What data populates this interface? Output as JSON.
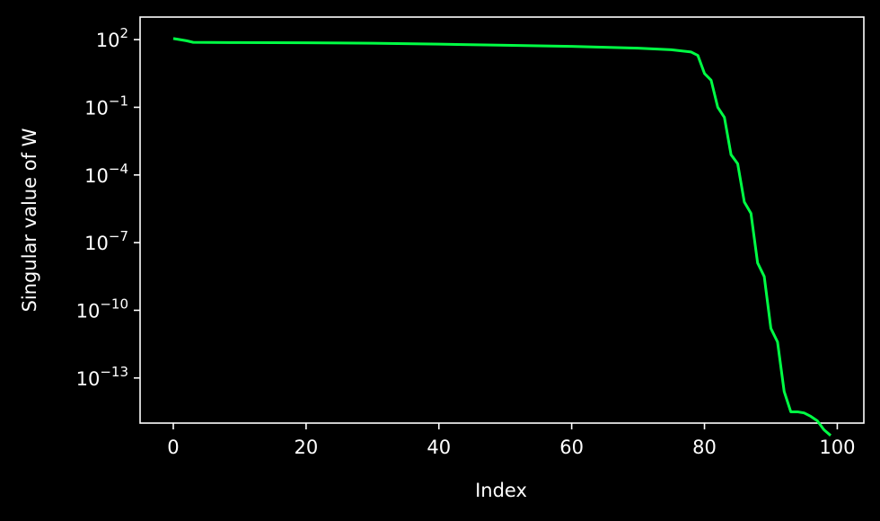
{
  "chart_data": {
    "type": "line",
    "xlabel": "Index",
    "ylabel": "Singular value of W",
    "xlim": [
      -5,
      104
    ],
    "ylim_log10": [
      -15.0,
      3.0
    ],
    "y_scale": "log",
    "grid": false,
    "x_ticks": [
      {
        "value": 0,
        "label": "0"
      },
      {
        "value": 20,
        "label": "20"
      },
      {
        "value": 40,
        "label": "40"
      },
      {
        "value": 60,
        "label": "60"
      },
      {
        "value": 80,
        "label": "80"
      },
      {
        "value": 100,
        "label": "100"
      }
    ],
    "y_ticks": [
      {
        "log10": 2,
        "base": "10",
        "exp": "2"
      },
      {
        "log10": -1,
        "base": "10",
        "exp": "−1"
      },
      {
        "log10": -4,
        "base": "10",
        "exp": "−4"
      },
      {
        "log10": -7,
        "base": "10",
        "exp": "−7"
      },
      {
        "log10": -10,
        "base": "10",
        "exp": "−10"
      },
      {
        "log10": -13,
        "base": "10",
        "exp": "−13"
      }
    ],
    "series": [
      {
        "color": "#00ff44",
        "x": [
          0,
          1,
          2,
          3,
          10,
          20,
          30,
          40,
          50,
          60,
          65,
          70,
          75,
          78,
          79,
          80,
          81,
          82,
          83,
          84,
          85,
          86,
          87,
          88,
          89,
          90,
          91,
          92,
          93,
          94,
          95,
          96,
          97,
          98,
          99
        ],
        "y_log10": [
          2.05,
          2.0,
          1.95,
          1.88,
          1.87,
          1.86,
          1.84,
          1.8,
          1.75,
          1.7,
          1.66,
          1.62,
          1.55,
          1.45,
          1.3,
          0.5,
          0.2,
          -1.0,
          -1.45,
          -3.1,
          -3.5,
          -5.2,
          -5.7,
          -7.9,
          -8.5,
          -10.8,
          -11.4,
          -13.6,
          -14.5,
          -14.5,
          -14.55,
          -14.7,
          -14.9,
          -15.3,
          -15.55
        ]
      }
    ]
  }
}
